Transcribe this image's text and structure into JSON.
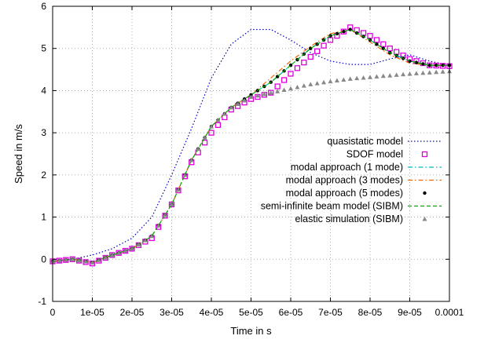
{
  "chart_data": {
    "type": "line",
    "title": "",
    "xlabel": "Time in s",
    "ylabel": "Speed in m/s",
    "xlim": [
      0,
      0.0001
    ],
    "ylim": [
      -1,
      6
    ],
    "grid": true,
    "legend_position": "bottom-right",
    "x_ticks": [
      {
        "value": 0,
        "label": "0"
      },
      {
        "value": 1e-05,
        "label": "1e-05"
      },
      {
        "value": 2e-05,
        "label": "2e-05"
      },
      {
        "value": 3e-05,
        "label": "3e-05"
      },
      {
        "value": 4e-05,
        "label": "4e-05"
      },
      {
        "value": 5e-05,
        "label": "5e-05"
      },
      {
        "value": 6e-05,
        "label": "6e-05"
      },
      {
        "value": 7e-05,
        "label": "7e-05"
      },
      {
        "value": 8e-05,
        "label": "8e-05"
      },
      {
        "value": 9e-05,
        "label": "9e-05"
      },
      {
        "value": 0.0001,
        "label": "0.0001"
      }
    ],
    "y_ticks": [
      {
        "value": -1,
        "label": "-1"
      },
      {
        "value": 0,
        "label": "0"
      },
      {
        "value": 1,
        "label": "1"
      },
      {
        "value": 2,
        "label": "2"
      },
      {
        "value": 3,
        "label": "3"
      },
      {
        "value": 4,
        "label": "4"
      },
      {
        "value": 5,
        "label": "5"
      },
      {
        "value": 6,
        "label": "6"
      }
    ],
    "series": [
      {
        "name": "quasistatic model",
        "color": "#0000cc",
        "style": "dotted",
        "x": [
          0,
          5e-06,
          1e-05,
          1.5e-05,
          2e-05,
          2.5e-05,
          3e-05,
          3.5e-05,
          4e-05,
          4.5e-05,
          5e-05,
          5.5e-05,
          6e-05,
          6.5e-05,
          7e-05,
          7.5e-05,
          8e-05,
          8.5e-05,
          9e-05,
          9.5e-05,
          0.0001
        ],
        "y": [
          -0.05,
          0.0,
          0.1,
          0.25,
          0.5,
          1.0,
          2.0,
          3.1,
          4.3,
          5.1,
          5.45,
          5.45,
          5.2,
          4.9,
          4.7,
          4.62,
          4.62,
          4.75,
          4.85,
          4.7,
          4.6
        ]
      },
      {
        "name": "SDOF model",
        "color": "#dd00dd",
        "style": "squares",
        "x": [
          0,
          5e-06,
          1e-05,
          1.5e-05,
          2e-05,
          2.5e-05,
          3e-05,
          3.5e-05,
          4e-05,
          4.5e-05,
          5e-05,
          5.5e-05,
          6e-05,
          6.5e-05,
          7e-05,
          7.5e-05,
          8e-05,
          8.5e-05,
          9e-05,
          9.5e-05,
          0.0001
        ],
        "y": [
          -0.05,
          0.0,
          -0.1,
          0.1,
          0.25,
          0.5,
          1.3,
          2.3,
          3.0,
          3.55,
          3.8,
          3.95,
          4.4,
          4.8,
          5.2,
          5.5,
          5.3,
          5.0,
          4.75,
          4.6,
          4.58
        ]
      },
      {
        "name": "modal approach (1 mode)",
        "color": "#00bbbb",
        "style": "dashdot",
        "x": [
          0,
          5e-06,
          1e-05,
          1.5e-05,
          2e-05,
          2.5e-05,
          3e-05,
          3.5e-05,
          4e-05,
          4.5e-05,
          5e-05,
          5.5e-05,
          6e-05,
          6.5e-05,
          7e-05,
          7.5e-05,
          8e-05,
          8.5e-05,
          9e-05,
          9.5e-05,
          0.0001
        ],
        "y": [
          -0.05,
          0.0,
          -0.08,
          0.1,
          0.25,
          0.55,
          1.3,
          2.35,
          3.15,
          3.6,
          3.9,
          4.2,
          4.6,
          5.0,
          5.3,
          5.45,
          5.2,
          4.9,
          4.7,
          4.6,
          4.6
        ]
      },
      {
        "name": "modal approach (3 modes)",
        "color": "#ee6600",
        "style": "dashdot",
        "x": [
          0,
          5e-06,
          1e-05,
          1.5e-05,
          2e-05,
          2.5e-05,
          3e-05,
          3.5e-05,
          4e-05,
          4.5e-05,
          5e-05,
          5.5e-05,
          6e-05,
          6.5e-05,
          7e-05,
          7.5e-05,
          8e-05,
          8.5e-05,
          9e-05,
          9.5e-05,
          0.0001
        ],
        "y": [
          -0.05,
          0.0,
          -0.08,
          0.1,
          0.25,
          0.55,
          1.3,
          2.35,
          3.15,
          3.6,
          3.9,
          4.3,
          4.7,
          5.05,
          5.35,
          5.45,
          5.15,
          4.85,
          4.65,
          4.6,
          4.6
        ]
      },
      {
        "name": "modal approach (5 modes)",
        "color": "#000000",
        "style": "dots",
        "x": [
          0,
          5e-06,
          1e-05,
          1.5e-05,
          2e-05,
          2.5e-05,
          3e-05,
          3.5e-05,
          4e-05,
          4.5e-05,
          5e-05,
          5.5e-05,
          6e-05,
          6.5e-05,
          7e-05,
          7.5e-05,
          8e-05,
          8.5e-05,
          9e-05,
          9.5e-05,
          0.0001
        ],
        "y": [
          -0.05,
          0.0,
          -0.08,
          0.1,
          0.25,
          0.55,
          1.3,
          2.35,
          3.15,
          3.6,
          3.9,
          4.2,
          4.6,
          5.0,
          5.3,
          5.45,
          5.2,
          4.9,
          4.7,
          4.6,
          4.6
        ]
      },
      {
        "name": "semi-infinite beam model (SIBM)",
        "color": "#00aa00",
        "style": "dashed",
        "x": [
          0,
          5e-06,
          1e-05,
          1.5e-05,
          2e-05,
          2.5e-05,
          3e-05,
          3.5e-05,
          4e-05,
          4.5e-05,
          5e-05,
          5.5e-05,
          6e-05,
          6.5e-05,
          7e-05,
          7.5e-05,
          8e-05,
          8.5e-05,
          9e-05,
          9.5e-05,
          0.0001
        ],
        "y": [
          -0.05,
          0.0,
          -0.08,
          0.1,
          0.25,
          0.55,
          1.3,
          2.35,
          3.15,
          3.6,
          3.9,
          4.2,
          4.6,
          5.0,
          5.3,
          5.45,
          5.2,
          4.9,
          4.7,
          4.6,
          4.6
        ]
      },
      {
        "name": "elastic simulation (SIBM)",
        "color": "#888888",
        "style": "triangles",
        "x": [
          0,
          5e-06,
          1e-05,
          1.5e-05,
          2e-05,
          2.5e-05,
          3e-05,
          3.5e-05,
          4e-05,
          4.5e-05,
          5e-05,
          5.5e-05,
          6e-05,
          6.5e-05,
          7e-05,
          7.5e-05,
          8e-05,
          8.5e-05,
          9e-05,
          9.5e-05,
          0.0001
        ],
        "y": [
          -0.05,
          0.0,
          -0.08,
          0.1,
          0.25,
          0.55,
          1.3,
          2.35,
          3.15,
          3.6,
          3.85,
          3.95,
          4.05,
          4.15,
          4.22,
          4.28,
          4.32,
          4.36,
          4.4,
          4.43,
          4.46
        ]
      }
    ]
  }
}
